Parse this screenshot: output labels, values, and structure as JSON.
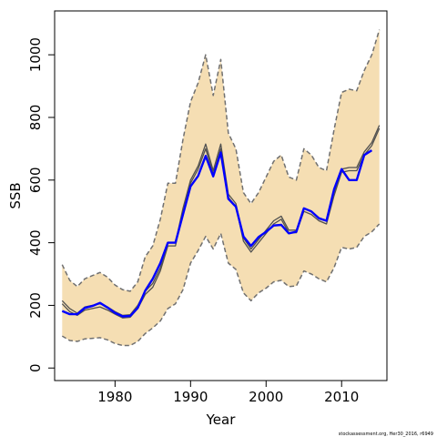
{
  "chart_data": {
    "type": "line",
    "xlabel": "Year",
    "ylabel": "SSB",
    "xlim": [
      1972,
      2016
    ],
    "ylim": [
      -40,
      1140
    ],
    "xticks": [
      1980,
      1990,
      2000,
      2010
    ],
    "yticks": [
      0,
      200,
      400,
      600,
      800,
      1000
    ],
    "grid": false,
    "legend": "none",
    "credit": "stockassessment.org, Her30_2016, r6949",
    "colors": {
      "band_fill": "#f5deb3",
      "bound_line": "#707070",
      "estimate_line": "#505050",
      "blue_line": "#0000ff"
    },
    "series": [
      {
        "role": "upper-confidence-bound",
        "x": [
          1973,
          1974,
          1975,
          1976,
          1977,
          1978,
          1979,
          1980,
          1981,
          1982,
          1983,
          1984,
          1985,
          1986,
          1987,
          1988,
          1989,
          1990,
          1991,
          1992,
          1993,
          1994,
          1995,
          1996,
          1997,
          1998,
          1999,
          2000,
          2001,
          2002,
          2003,
          2004,
          2005,
          2006,
          2007,
          2008,
          2009,
          2010,
          2011,
          2012,
          2013,
          2014,
          2015
        ],
        "values": [
          330,
          280,
          260,
          285,
          295,
          305,
          290,
          265,
          250,
          245,
          275,
          355,
          390,
          475,
          590,
          590,
          730,
          850,
          910,
          1000,
          870,
          985,
          750,
          700,
          560,
          525,
          560,
          610,
          660,
          680,
          610,
          600,
          700,
          680,
          640,
          630,
          760,
          880,
          890,
          885,
          950,
          1000,
          1080
        ]
      },
      {
        "role": "estimate-outer",
        "x": [
          1973,
          1974,
          1975,
          1976,
          1977,
          1978,
          1979,
          1980,
          1981,
          1982,
          1983,
          1984,
          1985,
          1986,
          1987,
          1988,
          1989,
          1990,
          1991,
          1992,
          1993,
          1994,
          1995,
          1996,
          1997,
          1998,
          1999,
          2000,
          2001,
          2002,
          2003,
          2004,
          2005,
          2006,
          2007,
          2008,
          2009,
          2010,
          2011,
          2012,
          2013,
          2014,
          2015
        ],
        "values": [
          215,
          190,
          175,
          195,
          200,
          205,
          195,
          180,
          168,
          170,
          200,
          245,
          270,
          320,
          400,
          400,
          510,
          600,
          645,
          715,
          630,
          715,
          555,
          525,
          415,
          380,
          410,
          440,
          470,
          485,
          440,
          440,
          510,
          500,
          480,
          470,
          560,
          635,
          640,
          640,
          690,
          720,
          775
        ]
      },
      {
        "role": "estimate-inner",
        "x": [
          1973,
          1974,
          1975,
          1976,
          1977,
          1978,
          1979,
          1980,
          1981,
          1982,
          1983,
          1984,
          1985,
          1986,
          1987,
          1988,
          1989,
          1990,
          1991,
          1992,
          1993,
          1994,
          1995,
          1996,
          1997,
          1998,
          1999,
          2000,
          2001,
          2002,
          2003,
          2004,
          2005,
          2006,
          2007,
          2008,
          2009,
          2010,
          2011,
          2012,
          2013,
          2014,
          2015
        ],
        "values": [
          205,
          180,
          168,
          185,
          190,
          195,
          185,
          172,
          160,
          162,
          190,
          235,
          258,
          310,
          390,
          390,
          500,
          590,
          635,
          700,
          620,
          700,
          545,
          515,
          405,
          370,
          400,
          430,
          460,
          475,
          432,
          432,
          500,
          490,
          470,
          460,
          550,
          625,
          630,
          630,
          680,
          710,
          765
        ]
      },
      {
        "role": "blue-series",
        "x": [
          1973,
          1974,
          1975,
          1976,
          1977,
          1978,
          1979,
          1980,
          1981,
          1982,
          1983,
          1984,
          1985,
          1986,
          1987,
          1988,
          1989,
          1990,
          1991,
          1992,
          1993,
          1994,
          1995,
          1996,
          1997,
          1998,
          1999,
          2000,
          2001,
          2002,
          2003,
          2004,
          2005,
          2006,
          2007,
          2008,
          2009,
          2010,
          2011,
          2012,
          2013,
          2014
        ],
        "values": [
          182,
          172,
          172,
          192,
          198,
          208,
          193,
          176,
          165,
          166,
          192,
          247,
          285,
          335,
          400,
          400,
          490,
          580,
          613,
          677,
          612,
          688,
          540,
          515,
          420,
          390,
          418,
          435,
          455,
          457,
          430,
          435,
          510,
          500,
          478,
          470,
          570,
          635,
          600,
          600,
          680,
          695
        ]
      },
      {
        "role": "lower-confidence-bound",
        "x": [
          1973,
          1974,
          1975,
          1976,
          1977,
          1978,
          1979,
          1980,
          1981,
          1982,
          1983,
          1984,
          1985,
          1986,
          1987,
          1988,
          1989,
          1990,
          1991,
          1992,
          1993,
          1994,
          1995,
          1996,
          1997,
          1998,
          1999,
          2000,
          2001,
          2002,
          2003,
          2004,
          2005,
          2006,
          2007,
          2008,
          2009,
          2010,
          2011,
          2012,
          2013,
          2014,
          2015
        ],
        "values": [
          102,
          88,
          85,
          93,
          95,
          97,
          90,
          78,
          72,
          72,
          85,
          110,
          128,
          150,
          190,
          205,
          250,
          335,
          375,
          420,
          380,
          430,
          335,
          315,
          240,
          215,
          240,
          255,
          275,
          280,
          260,
          262,
          310,
          300,
          285,
          275,
          320,
          385,
          380,
          385,
          420,
          435,
          460
        ]
      }
    ]
  }
}
